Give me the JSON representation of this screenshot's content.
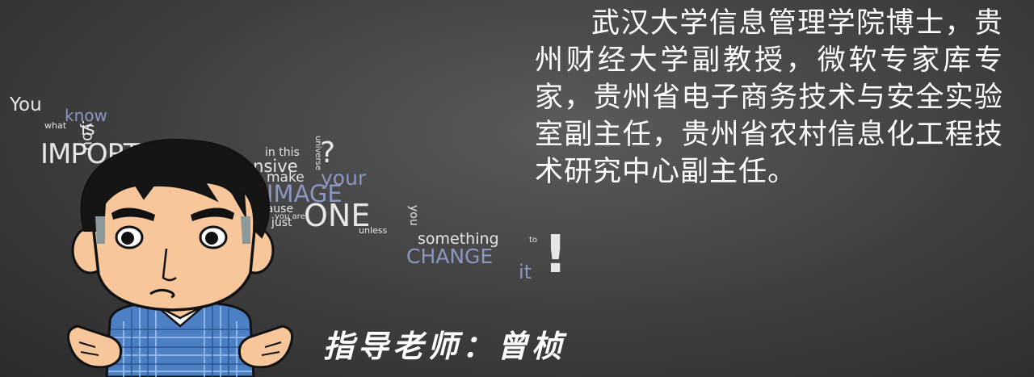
{
  "word_cloud": {
    "you": "You",
    "know": "know",
    "what": "what",
    "is": "is",
    "you_vertical": "you",
    "importance": "IMPORTANCE",
    "in_this": "in this",
    "universe": "universe",
    "question_mark": "?",
    "expansive": "expansive",
    "make": "make",
    "your": "your",
    "image": "IMAGE",
    "cause": "cause",
    "you_are": "you are",
    "just": "just",
    "one": "ONE",
    "you_v2": "you",
    "unless": "unless",
    "something": "something",
    "to": "to",
    "change": "CHANGE",
    "it": "it",
    "exclamation": "!"
  },
  "bio": {
    "text": "武汉大学信息管理学院博士，贵州财经大学副教授，微软专家库专家，贵州省电子商务技术与安全实验室副主任，贵州省农村信息化工程技术研究中心副主任。"
  },
  "advisor": {
    "label": "指导老师：曾桢"
  },
  "colors": {
    "background": "#3e3e3e",
    "text": "#ffffff",
    "accent_blue": "#8c97bf"
  },
  "icons": {
    "mascot": "cartoon-boy-shrugging-icon"
  }
}
